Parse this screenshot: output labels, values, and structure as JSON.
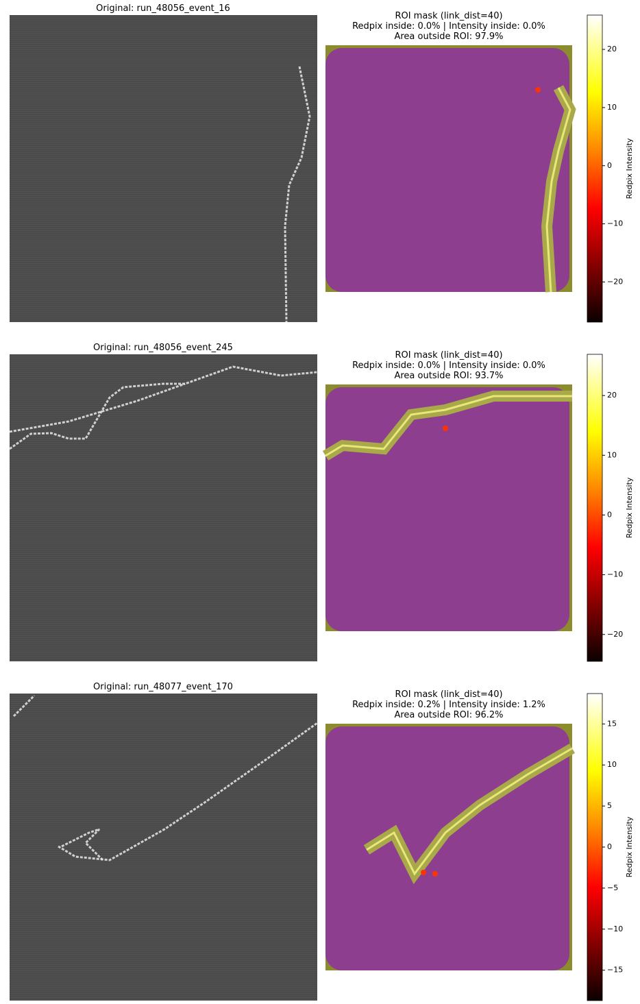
{
  "panels": [
    {
      "original_title": "Original: run_48056_event_16",
      "roi_title": [
        "ROI mask (link_dist=40)",
        "Redpix inside: 0.0% | Intensity inside: 0.0%",
        "Area outside ROI: 97.9%"
      ],
      "colorbar": {
        "label": "Redpix Intensity",
        "lim": [
          -26.9,
          25.9
        ],
        "ticks": [
          {
            "value": -20,
            "label": "−20"
          },
          {
            "value": -10,
            "label": "−10"
          },
          0,
          10,
          20
        ]
      }
    },
    {
      "original_title": "Original: run_48056_event_245",
      "roi_title": [
        "ROI mask (link_dist=40)",
        "Redpix inside: 0.0% | Intensity inside: 0.0%",
        "Area outside ROI: 93.7%"
      ],
      "colorbar": {
        "label": "Redpix Intensity",
        "lim": [
          -24.5,
          26.9
        ],
        "ticks": [
          {
            "value": -20,
            "label": "−20"
          },
          {
            "value": -10,
            "label": "−10"
          },
          0,
          10,
          20
        ]
      }
    },
    {
      "original_title": "Original: run_48077_event_170",
      "roi_title": [
        "ROI mask (link_dist=40)",
        "Redpix inside: 0.2% | Intensity inside: 1.2%",
        "Area outside ROI: 96.2%"
      ],
      "colorbar": {
        "label": "Redpix Intensity",
        "lim": [
          -18.7,
          18.7
        ],
        "ticks": [
          {
            "value": -15,
            "label": "−15"
          },
          {
            "value": -10,
            "label": "−10"
          },
          {
            "value": -5,
            "label": "−5"
          },
          0,
          5,
          10,
          15
        ]
      }
    }
  ]
}
